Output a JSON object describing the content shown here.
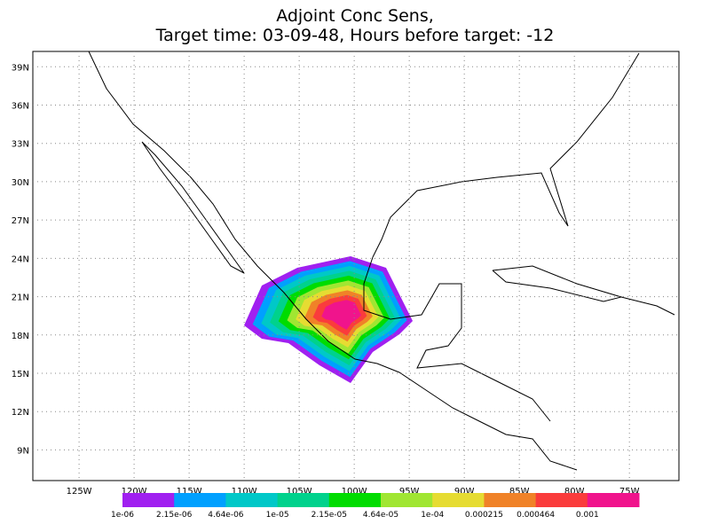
{
  "title": [
    "Adjoint Conc Sens,",
    "Target time: 03-09-48, Hours before target: -12"
  ],
  "map": {
    "lon_range": [
      -129.2,
      -70.5
    ],
    "lat_range": [
      6.6,
      40.2
    ],
    "lat_ticks": [
      {
        "value": 39,
        "label": "39N"
      },
      {
        "value": 36,
        "label": "36N"
      },
      {
        "value": 33,
        "label": "33N"
      },
      {
        "value": 30,
        "label": "30N"
      },
      {
        "value": 27,
        "label": "27N"
      },
      {
        "value": 24,
        "label": "24N"
      },
      {
        "value": 21,
        "label": "21N"
      },
      {
        "value": 18,
        "label": "18N"
      },
      {
        "value": 15,
        "label": "15N"
      },
      {
        "value": 12,
        "label": "12N"
      },
      {
        "value": 9,
        "label": "9N"
      }
    ],
    "lon_ticks": [
      {
        "value": -125,
        "label": "125W"
      },
      {
        "value": -120,
        "label": "120W"
      },
      {
        "value": -115,
        "label": "115W"
      },
      {
        "value": -110,
        "label": "110W"
      },
      {
        "value": -105,
        "label": "105W"
      },
      {
        "value": -100,
        "label": "100W"
      },
      {
        "value": -95,
        "label": "95W"
      },
      {
        "value": -90,
        "label": "90W"
      },
      {
        "value": -85,
        "label": "85W"
      },
      {
        "value": -80,
        "label": "80W"
      },
      {
        "value": -75,
        "label": "75W"
      }
    ],
    "grid": true
  },
  "colorbar": {
    "colors": [
      "#a020f0",
      "#00a0ff",
      "#00c8c8",
      "#00d28c",
      "#00dc00",
      "#a0e632",
      "#e6dc32",
      "#f08228",
      "#fa3c3c",
      "#f0148c"
    ],
    "labels": [
      "1e-06",
      "2.15e-06",
      "4.64e-06",
      "1e-05",
      "2.15e-05",
      "4.64e-05",
      "1e-04",
      "0.000215",
      "0.000464",
      "0.001"
    ]
  }
}
